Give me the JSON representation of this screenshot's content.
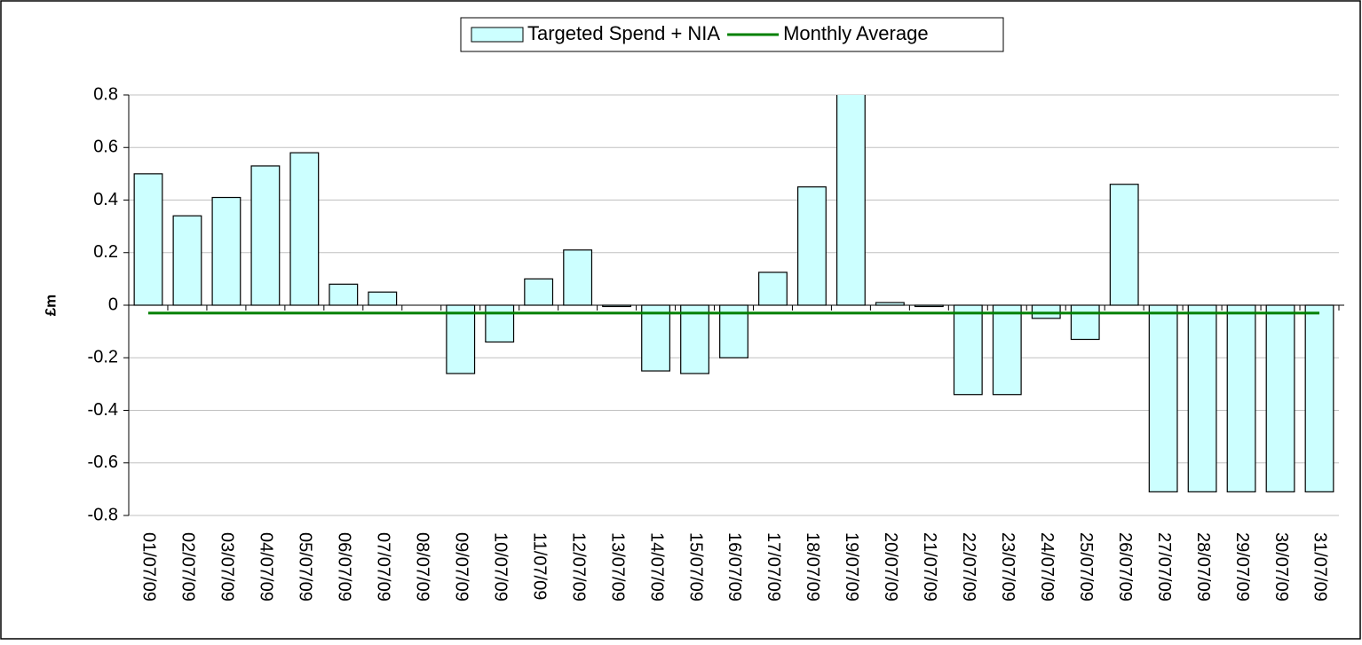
{
  "chart_data": {
    "type": "bar",
    "y_label": "£m",
    "categories": [
      "01/07/09",
      "02/07/09",
      "03/07/09",
      "04/07/09",
      "05/07/09",
      "06/07/09",
      "07/07/09",
      "08/07/09",
      "09/07/09",
      "10/07/09",
      "11/07/09",
      "12/07/09",
      "13/07/09",
      "14/07/09",
      "15/07/09",
      "16/07/09",
      "17/07/09",
      "18/07/09",
      "19/07/09",
      "20/07/09",
      "21/07/09",
      "22/07/09",
      "23/07/09",
      "24/07/09",
      "25/07/09",
      "26/07/09",
      "27/07/09",
      "28/07/09",
      "29/07/09",
      "30/07/09",
      "31/07/09"
    ],
    "series": [
      {
        "name": "Targeted Spend + NIA",
        "type": "bar",
        "color": "#ccffff",
        "values": [
          0.5,
          0.34,
          0.41,
          0.53,
          0.58,
          0.08,
          0.05,
          0,
          -0.26,
          -0.14,
          0.1,
          0.21,
          -0.005,
          -0.25,
          -0.26,
          -0.2,
          0.125,
          0.45,
          0.85,
          0.01,
          -0.005,
          -0.34,
          -0.34,
          -0.05,
          -0.13,
          0.46,
          -0.71,
          -0.71,
          -0.71,
          -0.71,
          -0.71
        ]
      },
      {
        "name": "Monthly Average",
        "type": "line",
        "color": "#008000",
        "values": [
          -0.03,
          -0.03,
          -0.03,
          -0.03,
          -0.03,
          -0.03,
          -0.03,
          -0.03,
          -0.03,
          -0.03,
          -0.03,
          -0.03,
          -0.03,
          -0.03,
          -0.03,
          -0.03,
          -0.03,
          -0.03,
          -0.03,
          -0.03,
          -0.03,
          -0.03,
          -0.03,
          -0.03,
          -0.03,
          -0.03,
          -0.03,
          -0.03,
          -0.03,
          -0.03,
          -0.03
        ]
      }
    ],
    "ylim": [
      -0.8,
      0.8
    ],
    "yticks": [
      -0.8,
      -0.6,
      -0.4,
      -0.2,
      0,
      0.2,
      0.4,
      0.6,
      0.8
    ],
    "grid": true,
    "legend": "top"
  }
}
